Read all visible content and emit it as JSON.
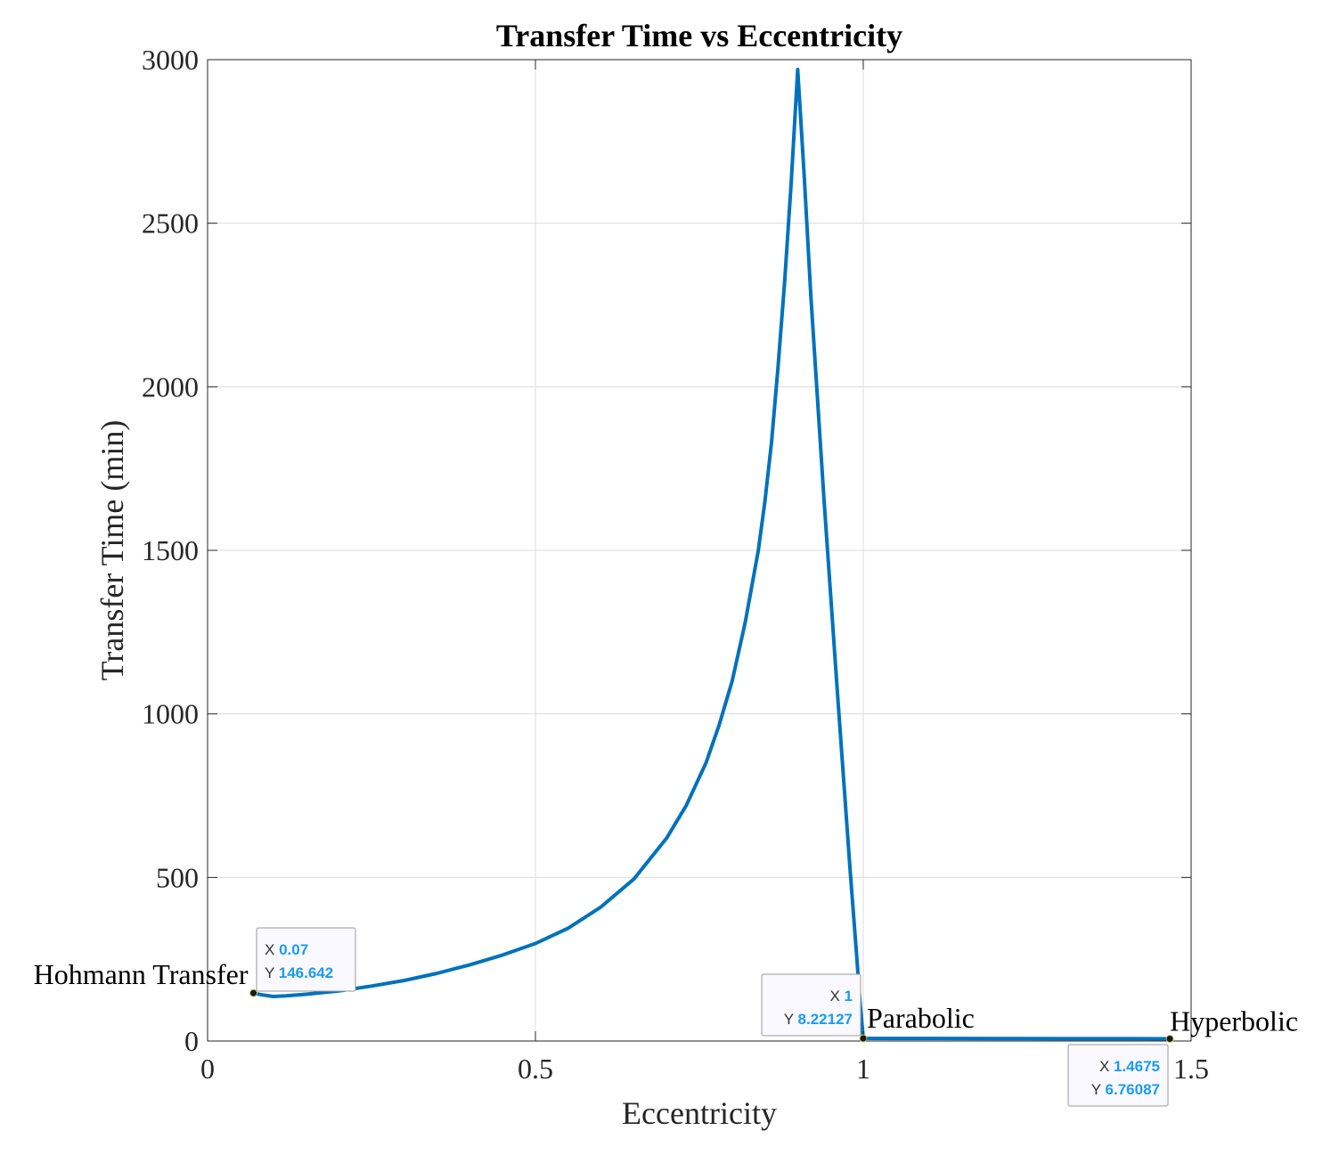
{
  "chart_data": {
    "type": "line",
    "title": "Transfer Time vs Eccentricity",
    "xlabel": "Eccentricity",
    "ylabel": "Transfer Time (min)",
    "xlim": [
      0,
      1.5
    ],
    "ylim": [
      0,
      3000
    ],
    "xticks": [
      0,
      0.5,
      1,
      1.5
    ],
    "xtick_labels": [
      "0",
      "0.5",
      "1",
      "1.5"
    ],
    "yticks": [
      0,
      500,
      1000,
      1500,
      2000,
      2500,
      3000
    ],
    "ytick_labels": [
      "0",
      "500",
      "1000",
      "1500",
      "2000",
      "2500",
      "3000"
    ],
    "grid": true,
    "line_color": "#0072bd",
    "series": [
      {
        "x": [
          0.07,
          0.08,
          0.1,
          0.12,
          0.15,
          0.2,
          0.25,
          0.3,
          0.35,
          0.4,
          0.45,
          0.5,
          0.55,
          0.6,
          0.65,
          0.7,
          0.73,
          0.76,
          0.78,
          0.8,
          0.82,
          0.84,
          0.85,
          0.86,
          0.87,
          0.88,
          0.89,
          0.9,
          0.91,
          0.92,
          0.94,
          0.96,
          0.98,
          0.99,
          0.995,
          1.0,
          1.05,
          1.1,
          1.2,
          1.3,
          1.4,
          1.4675
        ],
        "y": [
          146.642,
          142,
          136,
          138,
          143,
          153,
          168,
          185,
          207,
          233,
          263,
          298,
          345,
          410,
          495,
          620,
          720,
          850,
          965,
          1100,
          1280,
          1500,
          1650,
          1830,
          2060,
          2320,
          2620,
          2970,
          2640,
          2280,
          1660,
          1080,
          520,
          260,
          120,
          8.22127,
          8.0,
          7.8,
          7.5,
          7.2,
          6.95,
          6.76087
        ]
      }
    ],
    "datatips": [
      {
        "x_label": "X",
        "x_value": "0.07",
        "y_label": "Y",
        "y_value": "146.642",
        "x": 0.07,
        "y": 146.642
      },
      {
        "x_label": "X",
        "x_value": "1",
        "y_label": "Y",
        "y_value": "8.22127",
        "x": 1.0,
        "y": 8.22127
      },
      {
        "x_label": "X",
        "x_value": "1.4675",
        "y_label": "Y",
        "y_value": "6.76087",
        "x": 1.4675,
        "y": 6.76087
      }
    ],
    "annotations": [
      {
        "text": "Hohmann Transfer",
        "x": 0.07,
        "y": 146.642
      },
      {
        "text": "Parabolic",
        "x": 1.0,
        "y": 8.22127
      },
      {
        "text": "Hyperbolic",
        "x": 1.4675,
        "y": 6.76087
      }
    ]
  }
}
